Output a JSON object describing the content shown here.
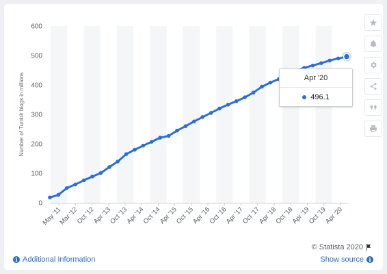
{
  "colors": {
    "series": "#2b6fd4",
    "band": "#f5f6f8",
    "axis": "#888888"
  },
  "chart_data": {
    "type": "line",
    "ylabel": "Number of Tumblr blogs in millions",
    "xlabel": "",
    "ylim": [
      0,
      600
    ],
    "yticks": [
      0,
      100,
      200,
      300,
      400,
      500,
      600
    ],
    "xticks": [
      "May '11",
      "Mar '12",
      "Oct '12",
      "Apr '13",
      "Oct '13",
      "Apr '14",
      "Oct '14",
      "Apr '15",
      "Oct '15",
      "Apr '16",
      "Oct '16",
      "Apr '17",
      "Oct '17",
      "Apr '18",
      "Oct '18",
      "Apr '19",
      "Oct '19",
      "Apr '20"
    ],
    "grid": false,
    "series": [
      {
        "values": [
          18,
          27,
          50,
          62,
          76,
          89,
          101,
          121,
          140,
          165,
          180,
          194,
          207,
          221,
          227,
          245,
          260,
          276,
          291,
          305,
          320,
          333,
          345,
          358,
          374,
          394,
          408,
          420,
          435,
          449,
          458,
          466,
          474,
          483,
          490,
          496.1
        ]
      }
    ],
    "highlight": {
      "index": 35,
      "label": "Apr '20",
      "value": "496.1"
    }
  },
  "toolbar": {
    "icons": [
      "star-icon",
      "bell-icon",
      "gear-icon",
      "share-icon",
      "quote-icon",
      "print-icon"
    ]
  },
  "footer": {
    "credit": "© Statista 2020",
    "additional_info": "Additional Information",
    "show_source": "Show source"
  }
}
